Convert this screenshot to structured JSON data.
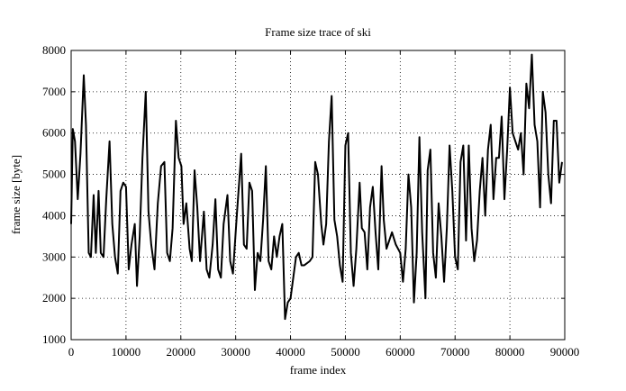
{
  "chart_data": {
    "type": "line",
    "title": "Frame size trace of ski",
    "x_label": "frame index",
    "y_label": "frame size [byte]",
    "x": [
      0,
      300,
      700,
      1200,
      1700,
      2300,
      2700,
      3200,
      3600,
      4100,
      4500,
      5000,
      5400,
      5900,
      6400,
      7000,
      7500,
      8000,
      8500,
      9000,
      9500,
      10000,
      10500,
      11000,
      11600,
      12000,
      12500,
      13000,
      13600,
      14100,
      14600,
      15200,
      15800,
      16400,
      17000,
      17500,
      18000,
      18500,
      19100,
      19600,
      20100,
      20500,
      21000,
      21600,
      22000,
      22500,
      23000,
      23500,
      24200,
      24700,
      25200,
      25800,
      26300,
      26800,
      27300,
      27800,
      28500,
      29000,
      29500,
      30200,
      31000,
      31500,
      32000,
      32500,
      33000,
      33500,
      34000,
      34500,
      35000,
      35500,
      36000,
      36500,
      37000,
      37500,
      38000,
      38500,
      39000,
      39500,
      40000,
      40500,
      41000,
      41500,
      42000,
      42500,
      43500,
      44000,
      44500,
      45000,
      45600,
      46000,
      46500,
      47000,
      47500,
      48000,
      48500,
      49000,
      49500,
      50000,
      50500,
      51000,
      51500,
      52000,
      52600,
      53000,
      53500,
      54000,
      54500,
      55000,
      55500,
      56000,
      56600,
      57000,
      57500,
      58000,
      58500,
      59200,
      60000,
      60500,
      61000,
      61500,
      62000,
      62500,
      63000,
      63500,
      64000,
      64600,
      65000,
      65500,
      66000,
      66500,
      67000,
      67500,
      68000,
      68500,
      69000,
      69500,
      70000,
      70500,
      71000,
      71500,
      72000,
      72500,
      73000,
      73500,
      74000,
      74500,
      75000,
      75500,
      76000,
      76500,
      77000,
      77500,
      78000,
      78500,
      79000,
      79500,
      80000,
      80500,
      81000,
      81500,
      82000,
      82500,
      83000,
      83500,
      84000,
      84500,
      85000,
      85500,
      86000,
      86500,
      87000,
      87500,
      88000,
      88500,
      89000,
      89500
    ],
    "series": [
      {
        "color": "#000000",
        "values": [
          3800,
          6100,
          5800,
          4400,
          5500,
          7400,
          6200,
          3100,
          3000,
          4500,
          3100,
          4600,
          3100,
          3000,
          4400,
          5800,
          3800,
          3000,
          2600,
          4600,
          4800,
          4700,
          2700,
          3300,
          3800,
          2300,
          3500,
          5400,
          7000,
          4100,
          3300,
          2700,
          4300,
          5200,
          5300,
          3100,
          2900,
          3700,
          6300,
          5400,
          5200,
          3800,
          4300,
          3200,
          2900,
          5100,
          4200,
          2900,
          4100,
          2700,
          2500,
          3300,
          4400,
          2700,
          2500,
          3800,
          4500,
          2900,
          2600,
          4000,
          5500,
          3300,
          3200,
          4800,
          4600,
          2200,
          3100,
          2900,
          3900,
          5200,
          2900,
          2700,
          3500,
          3000,
          3500,
          3800,
          1500,
          1900,
          2000,
          2500,
          3000,
          3100,
          2800,
          2800,
          2900,
          3000,
          5300,
          5000,
          3800,
          3300,
          3800,
          5800,
          6900,
          3900,
          3500,
          2800,
          2400,
          5700,
          6000,
          3100,
          2300,
          3200,
          4800,
          3700,
          3600,
          2700,
          4200,
          4700,
          3600,
          2700,
          5200,
          3900,
          3200,
          3400,
          3600,
          3300,
          3100,
          2400,
          3200,
          5000,
          4200,
          1900,
          3100,
          5900,
          3600,
          2000,
          5100,
          5600,
          3100,
          2500,
          4300,
          3500,
          2400,
          3700,
          5700,
          4600,
          3000,
          2700,
          5300,
          5700,
          3400,
          5700,
          3700,
          2900,
          3400,
          4600,
          5400,
          4000,
          5600,
          6200,
          4400,
          5400,
          5400,
          6400,
          4400,
          5600,
          7100,
          6000,
          5800,
          5600,
          6000,
          5000,
          7200,
          6600,
          7900,
          6200,
          5800,
          4200,
          7000,
          6500,
          5000,
          4300,
          6300,
          6300,
          4800,
          5300
        ]
      }
    ],
    "xlim": [
      0,
      90000
    ],
    "ylim": [
      1000,
      8000
    ],
    "xticks": [
      0,
      10000,
      20000,
      30000,
      40000,
      50000,
      60000,
      70000,
      80000,
      90000
    ],
    "yticks": [
      1000,
      2000,
      3000,
      4000,
      5000,
      6000,
      7000,
      8000
    ],
    "grid": true
  }
}
